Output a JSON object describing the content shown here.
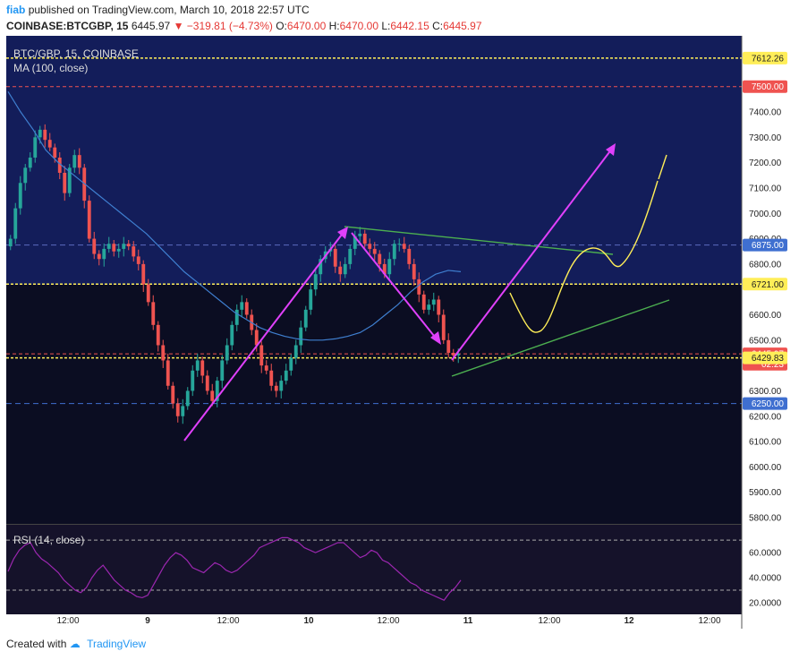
{
  "header": {
    "author": "fiab",
    "published_text": "published on TradingView.com, March 10, 2018 22:57 UTC",
    "symbol": "COINBASE:BTCGBP, 15",
    "last": "6445.97",
    "change": "−319.81 (−4.73%)",
    "open_label": "O:",
    "open": "6470.00",
    "high_label": "H:",
    "high": "6470.00",
    "low_label": "L:",
    "low": "6442.15",
    "close_label": "C:",
    "close": "6445.97"
  },
  "footer": {
    "created_with": "Created with",
    "brand": "TradingView"
  },
  "colors": {
    "bull": "#26a69a",
    "bear": "#ef5350",
    "ma": "#3f7fd0",
    "rsi": "#9c27b0",
    "magenta": "#e040fb",
    "green_line": "#4caf50",
    "yellow_line": "#ffee58",
    "upper_bg": "#131d5a",
    "lower_bg": "#0b0d22",
    "rsi_bg": "#15122a"
  },
  "chart_data": {
    "type": "candlestick",
    "title": "BTC/GBP, 15, COINBASE",
    "indicator_label": "MA (100, close)",
    "rsi_label": "RSI (14, close)",
    "y_ticks": [
      "7400.00",
      "7300.00",
      "7200.00",
      "7100.00",
      "7000.00",
      "6900.00",
      "6800.00",
      "6600.00",
      "6500.00",
      "6300.00",
      "6200.00",
      "6100.00",
      "6000.00",
      "5900.00",
      "5800.00"
    ],
    "ylim": [
      5750,
      7680
    ],
    "x_ticks": [
      "12:00",
      "9",
      "12:00",
      "10",
      "12:00",
      "11",
      "12:00",
      "12",
      "12:00"
    ],
    "price_tags": [
      {
        "label": "7612.26",
        "value": 7612.26,
        "kind": "yellow"
      },
      {
        "label": "7500.00",
        "value": 7500,
        "kind": "red"
      },
      {
        "label": "6875.00",
        "value": 6875,
        "kind": "blue"
      },
      {
        "label": "6721.00",
        "value": 6721,
        "kind": "yellow"
      },
      {
        "label": "6445.97",
        "value": 6445.97,
        "kind": "red"
      },
      {
        "label": "02:23",
        "value": 6405,
        "kind": "red"
      },
      {
        "label": "6429.83",
        "value": 6429.83,
        "kind": "yellow"
      },
      {
        "label": "6250.00",
        "value": 6250,
        "kind": "blue"
      }
    ],
    "rsi_ticks": [
      "60.0000",
      "40.0000",
      "20.0000"
    ],
    "rsi_range": [
      15,
      78
    ],
    "rsi_levels": [
      70,
      30
    ],
    "close_series": [
      6900,
      7020,
      7120,
      7180,
      7220,
      7300,
      7330,
      7290,
      7260,
      7220,
      7160,
      7080,
      7180,
      7230,
      7180,
      7050,
      6900,
      6840,
      6820,
      6860,
      6880,
      6850,
      6860,
      6880,
      6870,
      6830,
      6800,
      6720,
      6650,
      6560,
      6480,
      6420,
      6320,
      6250,
      6200,
      6240,
      6300,
      6380,
      6420,
      6360,
      6300,
      6260,
      6340,
      6420,
      6480,
      6560,
      6620,
      6650,
      6600,
      6540,
      6480,
      6400,
      6380,
      6320,
      6300,
      6340,
      6380,
      6430,
      6480,
      6550,
      6620,
      6700,
      6760,
      6820,
      6850,
      6860,
      6790,
      6760,
      6800,
      6860,
      6910,
      6920,
      6880,
      6860,
      6840,
      6800,
      6760,
      6820,
      6880,
      6880,
      6860,
      6800,
      6740,
      6680,
      6620,
      6640,
      6660,
      6600,
      6500,
      6450,
      6440,
      6446
    ],
    "ma_series": [
      7480,
      7400,
      7330,
      7250,
      7200,
      7160,
      7120,
      7080,
      7040,
      7000,
      6960,
      6920,
      6870,
      6820,
      6770,
      6730,
      6690,
      6650,
      6610,
      6580,
      6550,
      6530,
      6515,
      6505,
      6500,
      6500,
      6505,
      6515,
      6530,
      6560,
      6600,
      6640,
      6690,
      6730,
      6760,
      6775,
      6770
    ],
    "rsi_series": [
      45,
      55,
      62,
      66,
      68,
      60,
      55,
      52,
      48,
      44,
      38,
      34,
      30,
      28,
      32,
      40,
      46,
      50,
      44,
      38,
      34,
      30,
      28,
      25,
      24,
      26,
      34,
      42,
      50,
      56,
      60,
      58,
      54,
      48,
      46,
      44,
      48,
      52,
      50,
      46,
      44,
      46,
      50,
      54,
      58,
      64,
      66,
      68,
      70,
      72,
      72,
      70,
      68,
      64,
      62,
      60,
      62,
      64,
      66,
      68,
      68,
      64,
      60,
      56,
      58,
      62,
      60,
      54,
      52,
      48,
      44,
      40,
      36,
      34,
      30,
      28,
      26,
      24,
      22,
      28,
      32,
      38
    ],
    "annotations": [
      "magenta arrows",
      "green trend lines",
      "yellow projection curve"
    ]
  }
}
